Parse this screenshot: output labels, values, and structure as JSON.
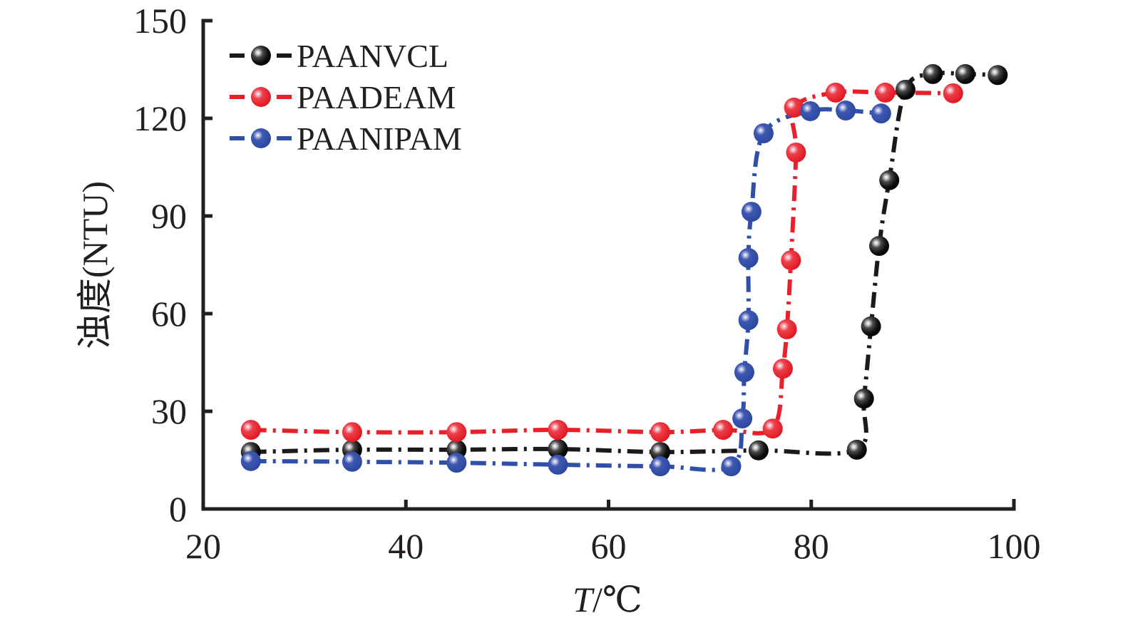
{
  "chart_data": {
    "type": "line",
    "title": "",
    "xlabel": "T/℃",
    "xlabel_italic_part": "T",
    "xlabel_rest": "/℃",
    "ylabel": "浊度(NTU)",
    "xlim": [
      20,
      100
    ],
    "ylim": [
      0,
      150
    ],
    "xticks": [
      20,
      40,
      60,
      80,
      100
    ],
    "yticks": [
      0,
      30,
      60,
      90,
      120,
      150
    ],
    "grid": false,
    "legend_position": "top-left",
    "line_style": "dash-dot",
    "marker": "sphere",
    "series": [
      {
        "name": "PAANVCL",
        "color": "#1a1a1a",
        "x": [
          24.7,
          34.7,
          45.0,
          55.0,
          65.1,
          74.8,
          84.5,
          85.2,
          85.9,
          86.7,
          87.7,
          89.3,
          92.0,
          95.2,
          98.4
        ],
        "y": [
          17.5,
          18.2,
          18.2,
          18.4,
          17.5,
          18.0,
          18.2,
          33.9,
          56.1,
          80.8,
          101.0,
          128.8,
          133.6,
          133.6,
          133.3
        ]
      },
      {
        "name": "PAADEAM",
        "color": "#e8202a",
        "x": [
          24.7,
          34.7,
          45.0,
          55.0,
          65.1,
          71.3,
          76.2,
          77.2,
          77.6,
          78.0,
          78.5,
          78.3,
          82.4,
          87.3,
          94.0
        ],
        "y": [
          24.3,
          23.6,
          23.6,
          24.3,
          23.6,
          24.3,
          24.7,
          43.1,
          55.2,
          76.4,
          109.5,
          123.3,
          127.9,
          127.9,
          127.7
        ]
      },
      {
        "name": "PAANIPAM",
        "color": "#2f4fa8",
        "x": [
          24.7,
          34.7,
          45.0,
          55.0,
          65.1,
          72.1,
          73.2,
          73.4,
          73.8,
          73.8,
          74.1,
          75.3,
          79.9,
          83.4,
          86.9
        ],
        "y": [
          14.7,
          14.5,
          14.2,
          13.6,
          13.1,
          13.1,
          27.8,
          42.0,
          58.0,
          77.1,
          91.3,
          115.4,
          122.2,
          122.4,
          121.5
        ]
      }
    ]
  }
}
